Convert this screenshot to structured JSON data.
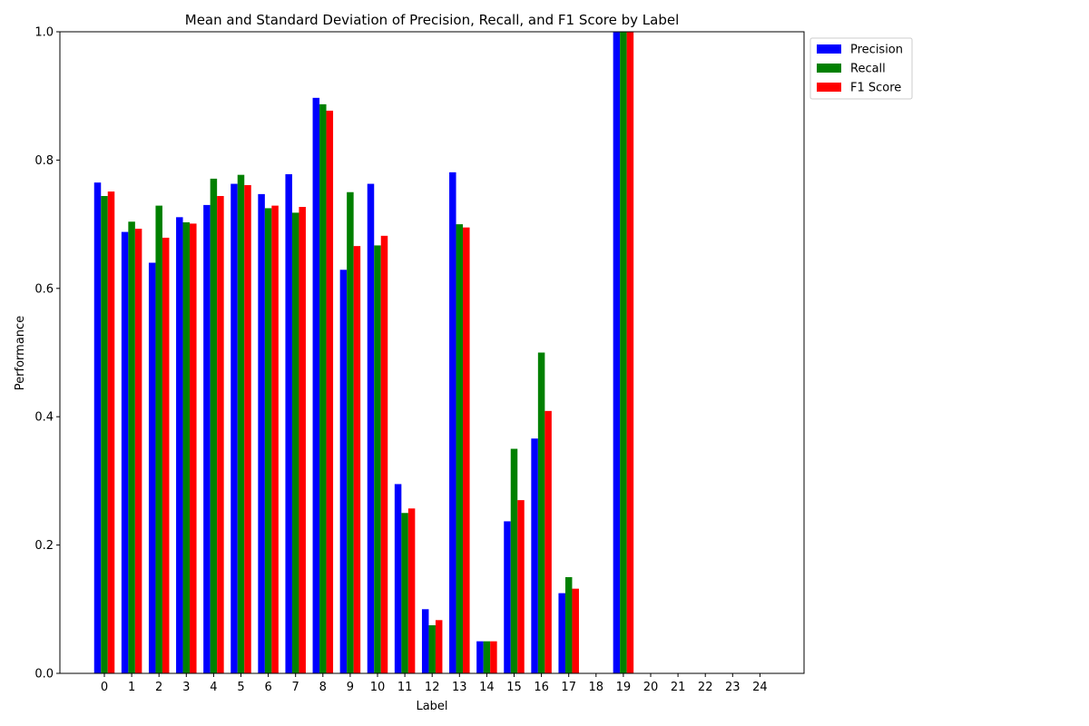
{
  "chart_data": {
    "type": "bar",
    "title": "Mean and Standard Deviation of Precision, Recall, and F1 Score by Label",
    "xlabel": "Label",
    "ylabel": "Performance",
    "ylim": [
      0,
      1.0
    ],
    "yticks": [
      "0.0",
      "0.2",
      "0.4",
      "0.6",
      "0.8",
      "1.0"
    ],
    "categories": [
      "0",
      "1",
      "2",
      "3",
      "4",
      "5",
      "6",
      "7",
      "8",
      "9",
      "10",
      "11",
      "12",
      "13",
      "14",
      "15",
      "16",
      "17",
      "18",
      "19",
      "20",
      "21",
      "22",
      "23",
      "24"
    ],
    "legend_position": "outside-top-right",
    "grid": false,
    "series": [
      {
        "name": "Precision",
        "color": "#0000ff",
        "values": [
          0.765,
          0.688,
          0.64,
          0.711,
          0.73,
          0.763,
          0.747,
          0.778,
          0.897,
          0.629,
          0.763,
          0.295,
          0.1,
          0.781,
          0.05,
          0.237,
          0.366,
          0.125,
          0,
          1.0,
          0,
          0,
          0,
          0,
          0
        ]
      },
      {
        "name": "Recall",
        "color": "#008000",
        "values": [
          0.744,
          0.704,
          0.729,
          0.703,
          0.771,
          0.777,
          0.725,
          0.718,
          0.887,
          0.75,
          0.667,
          0.25,
          0.075,
          0.7,
          0.05,
          0.35,
          0.5,
          0.15,
          0,
          1.0,
          0,
          0,
          0,
          0,
          0
        ]
      },
      {
        "name": "F1 Score",
        "color": "#ff0000",
        "values": [
          0.751,
          0.693,
          0.679,
          0.701,
          0.744,
          0.761,
          0.729,
          0.727,
          0.877,
          0.666,
          0.682,
          0.257,
          0.083,
          0.695,
          0.05,
          0.27,
          0.409,
          0.132,
          0,
          1.0,
          0,
          0,
          0,
          0,
          0
        ]
      }
    ]
  }
}
